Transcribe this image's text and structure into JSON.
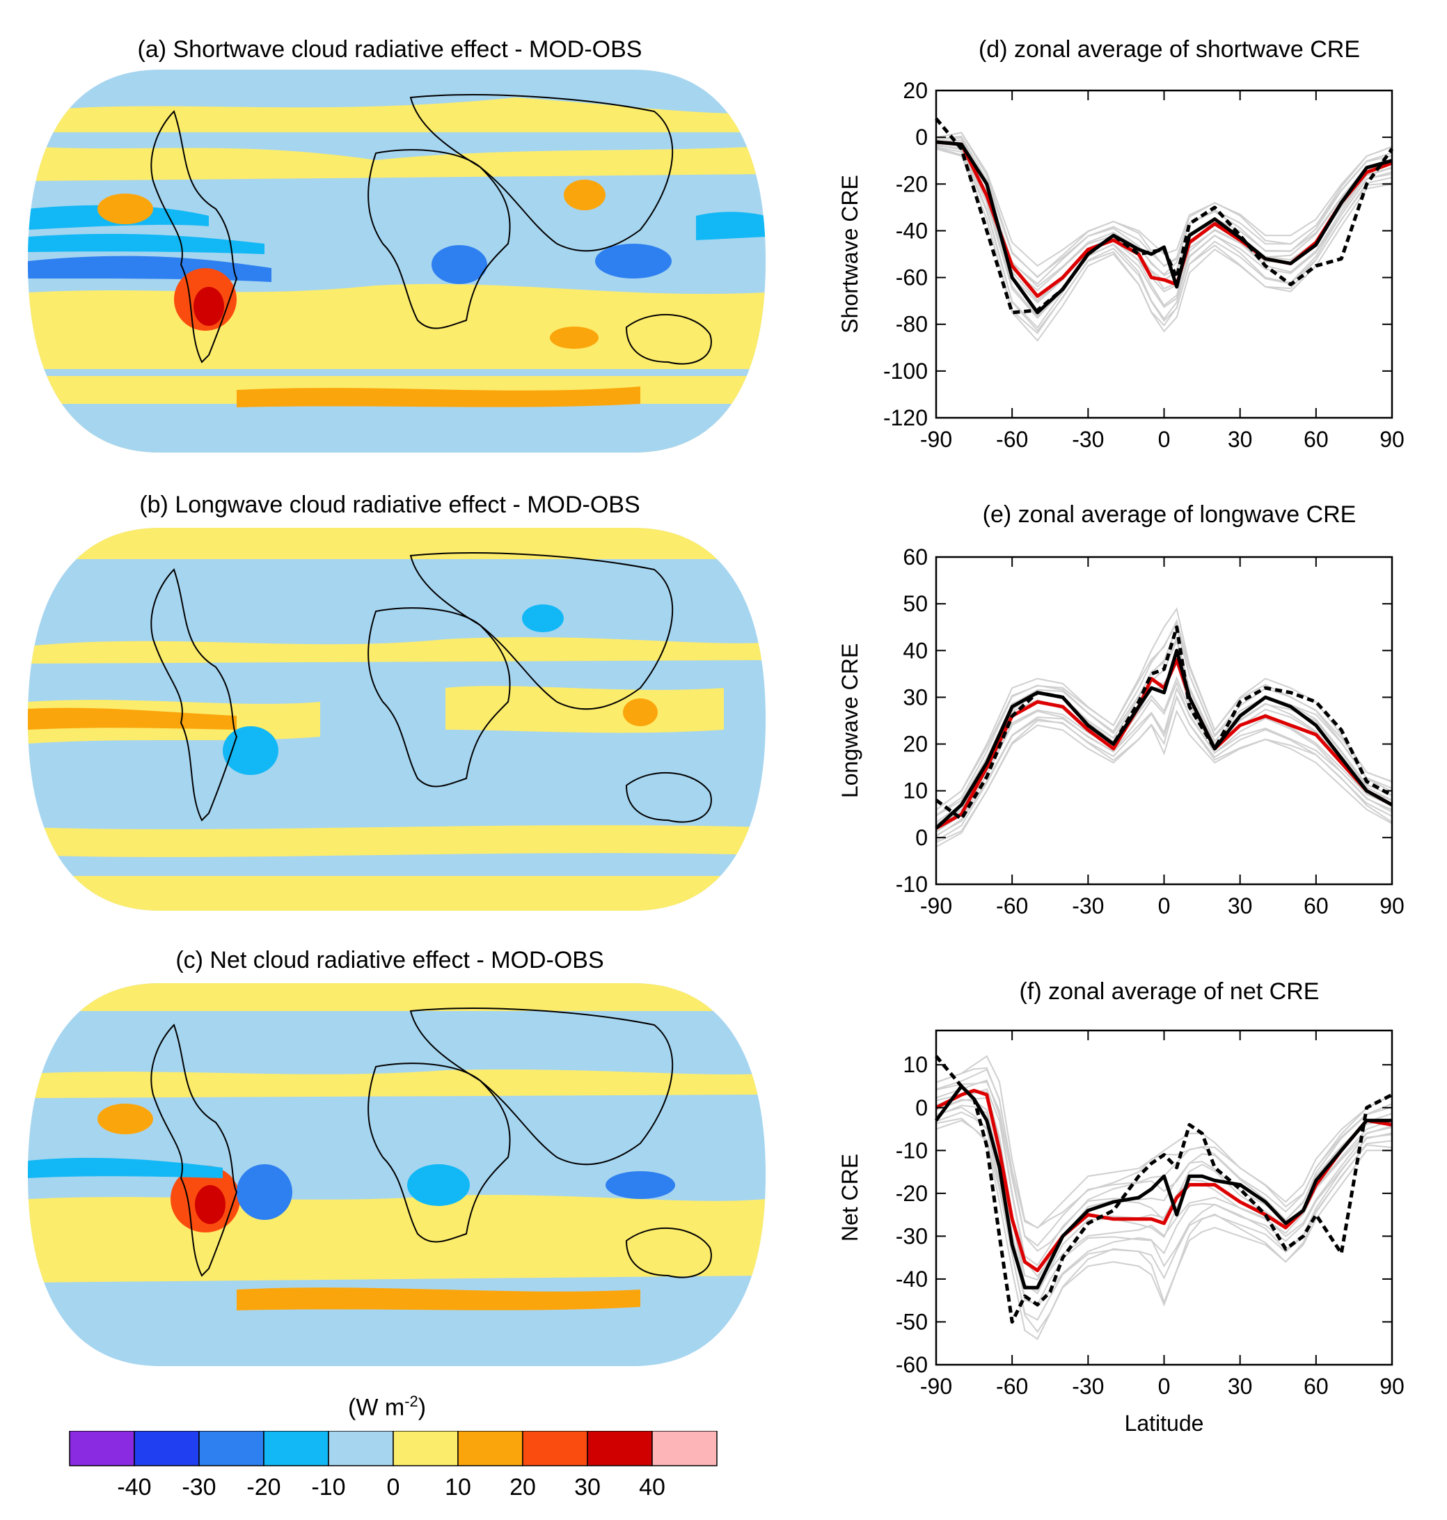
{
  "maps": [
    {
      "id": "sw",
      "title": "(a) Shortwave cloud radiative effect - MOD-OBS"
    },
    {
      "id": "lw",
      "title": "(b) Longwave cloud radiative effect - MOD-OBS"
    },
    {
      "id": "net",
      "title": "(c) Net cloud radiative effect - MOD-OBS"
    }
  ],
  "colorbar": {
    "units_label": "(W m",
    "units_exp": "-2",
    "units_close": ")",
    "ticks": [
      "-40",
      "-30",
      "-20",
      "-10",
      "0",
      "10",
      "20",
      "30",
      "40"
    ],
    "colors": [
      "#8a2be2",
      "#1f3ff0",
      "#2e7ff0",
      "#12b8f5",
      "#a6d5f0",
      "#fcec6b",
      "#fba50c",
      "#fb4c0f",
      "#d00000",
      "#fdb5b8"
    ]
  },
  "colors": {
    "ensemble": "#cfcfcf",
    "model_mean": "#dd0000",
    "obs_solid": "#000000",
    "obs_dashed": "#000000"
  },
  "chart_data": [
    {
      "type": "line",
      "title": "(d) zonal average of shortwave CRE",
      "xlabel": "",
      "ylabel": "Shortwave CRE",
      "xlim": [
        -90,
        90
      ],
      "ylim": [
        -120,
        20
      ],
      "xticks": [
        -90,
        -60,
        -30,
        0,
        30,
        60,
        90
      ],
      "yticks": [
        -120,
        -100,
        -80,
        -60,
        -40,
        -20,
        0,
        20
      ],
      "x": [
        -90,
        -80,
        -70,
        -60,
        -50,
        -40,
        -30,
        -20,
        -10,
        -5,
        0,
        5,
        10,
        20,
        30,
        40,
        50,
        60,
        70,
        80,
        90
      ],
      "series": [
        {
          "role": "ensemble-mean",
          "color": "red",
          "style": "solid",
          "values": [
            -2,
            -3,
            -25,
            -55,
            -68,
            -60,
            -48,
            -44,
            -50,
            -60,
            -61,
            -63,
            -45,
            -37,
            -44,
            -52,
            -54,
            -45,
            -28,
            -15,
            -11
          ]
        },
        {
          "role": "observation-1",
          "color": "black",
          "style": "solid",
          "values": [
            -2,
            -3,
            -20,
            -60,
            -75,
            -65,
            -50,
            -42,
            -48,
            -50,
            -47,
            -64,
            -42,
            -35,
            -43,
            -52,
            -54,
            -46,
            -28,
            -13,
            -10
          ]
        },
        {
          "role": "observation-2",
          "color": "black",
          "style": "dashed",
          "values": [
            8,
            -5,
            -40,
            -75,
            -74,
            -65,
            -50,
            -42,
            -50,
            -49,
            -48,
            -60,
            -37,
            -30,
            -42,
            -55,
            -63,
            -55,
            -52,
            -20,
            -5
          ]
        }
      ],
      "ensemble_spread": {
        "lower": [
          -5,
          -8,
          -35,
          -75,
          -87,
          -72,
          -55,
          -50,
          -63,
          -75,
          -83,
          -77,
          -58,
          -48,
          -55,
          -64,
          -66,
          -55,
          -38,
          -22,
          -20
        ],
        "upper": [
          0,
          2,
          -15,
          -45,
          -55,
          -48,
          -40,
          -36,
          -40,
          -45,
          -50,
          -48,
          -33,
          -28,
          -33,
          -42,
          -42,
          -35,
          -20,
          -8,
          -4
        ]
      }
    },
    {
      "type": "line",
      "title": "(e) zonal average of longwave CRE",
      "xlabel": "",
      "ylabel": "Longwave CRE",
      "xlim": [
        -90,
        90
      ],
      "ylim": [
        -10,
        60
      ],
      "xticks": [
        -90,
        -60,
        -30,
        0,
        30,
        60,
        90
      ],
      "yticks": [
        -10,
        0,
        10,
        20,
        30,
        40,
        50,
        60
      ],
      "x": [
        -90,
        -80,
        -70,
        -60,
        -50,
        -40,
        -30,
        -20,
        -10,
        -5,
        0,
        5,
        10,
        20,
        30,
        40,
        50,
        60,
        70,
        80,
        90
      ],
      "series": [
        {
          "role": "ensemble-mean",
          "color": "red",
          "style": "solid",
          "values": [
            2,
            5,
            15,
            26,
            29,
            28,
            23,
            19,
            28,
            34,
            32,
            38,
            30,
            19,
            24,
            26,
            24,
            22,
            16,
            10,
            7
          ]
        },
        {
          "role": "observation-1",
          "color": "black",
          "style": "solid",
          "values": [
            2,
            7,
            16,
            28,
            31,
            30,
            24,
            20,
            28,
            32,
            31,
            40,
            30,
            19,
            26,
            30,
            28,
            24,
            17,
            10,
            7
          ]
        },
        {
          "role": "observation-2",
          "color": "black",
          "style": "dashed",
          "values": [
            8,
            4,
            13,
            26,
            31,
            30,
            24,
            20,
            29,
            35,
            36,
            45,
            28,
            19,
            29,
            32,
            31,
            29,
            23,
            12,
            9
          ]
        }
      ],
      "ensemble_spread": {
        "lower": [
          -2,
          1,
          10,
          20,
          24,
          23,
          19,
          16,
          21,
          24,
          18,
          27,
          22,
          16,
          19,
          21,
          19,
          16,
          11,
          6,
          3
        ],
        "upper": [
          6,
          10,
          20,
          32,
          34,
          33,
          28,
          24,
          34,
          40,
          45,
          49,
          37,
          23,
          30,
          34,
          32,
          29,
          22,
          14,
          12
        ]
      }
    },
    {
      "type": "line",
      "title": "(f) zonal average of net CRE",
      "xlabel": "Latitude",
      "ylabel": "Net CRE",
      "xlim": [
        -90,
        90
      ],
      "ylim": [
        -60,
        18
      ],
      "xticks": [
        -90,
        -60,
        -30,
        0,
        30,
        60,
        90
      ],
      "yticks": [
        -60,
        -50,
        -40,
        -30,
        -20,
        -10,
        0,
        10
      ],
      "x": [
        -90,
        -80,
        -75,
        -70,
        -65,
        -60,
        -55,
        -50,
        -45,
        -40,
        -30,
        -20,
        -10,
        -5,
        0,
        5,
        10,
        15,
        20,
        30,
        40,
        48,
        55,
        60,
        70,
        80,
        90
      ],
      "series": [
        {
          "role": "ensemble-mean",
          "color": "red",
          "style": "solid",
          "values": [
            0,
            3,
            4,
            3,
            -10,
            -26,
            -36,
            -38,
            -34,
            -30,
            -25,
            -26,
            -26,
            -26,
            -27,
            -21,
            -18,
            -18,
            -18,
            -22,
            -25,
            -28,
            -24,
            -18,
            -10,
            -3,
            -4
          ]
        },
        {
          "role": "observation-1",
          "color": "black",
          "style": "solid",
          "values": [
            -3,
            5,
            2,
            -3,
            -14,
            -32,
            -42,
            -42,
            -36,
            -30,
            -24,
            -22,
            -21,
            -19,
            -16,
            -25,
            -16,
            -16,
            -17,
            -18,
            -22,
            -27,
            -24,
            -17,
            -10,
            -3,
            -3
          ]
        },
        {
          "role": "observation-2",
          "color": "black",
          "style": "dashed",
          "values": [
            12,
            5,
            2,
            -9,
            -30,
            -50,
            -44,
            -46,
            -43,
            -35,
            -27,
            -24,
            -16,
            -13,
            -11,
            -14,
            -4,
            -6,
            -14,
            -19,
            -25,
            -33,
            -30,
            -25,
            -34,
            0,
            3
          ]
        }
      ],
      "ensemble_spread": {
        "lower": [
          -5,
          -3,
          -5,
          -8,
          -22,
          -38,
          -52,
          -54,
          -48,
          -42,
          -37,
          -36,
          -37,
          -39,
          -46,
          -38,
          -31,
          -29,
          -28,
          -30,
          -32,
          -36,
          -32,
          -26,
          -18,
          -10,
          -10
        ],
        "upper": [
          6,
          8,
          10,
          12,
          6,
          -12,
          -26,
          -28,
          -25,
          -22,
          -16,
          -15,
          -14,
          -12,
          -10,
          -8,
          -6,
          -6,
          -8,
          -14,
          -18,
          -22,
          -18,
          -12,
          -5,
          0,
          3
        ]
      }
    }
  ]
}
